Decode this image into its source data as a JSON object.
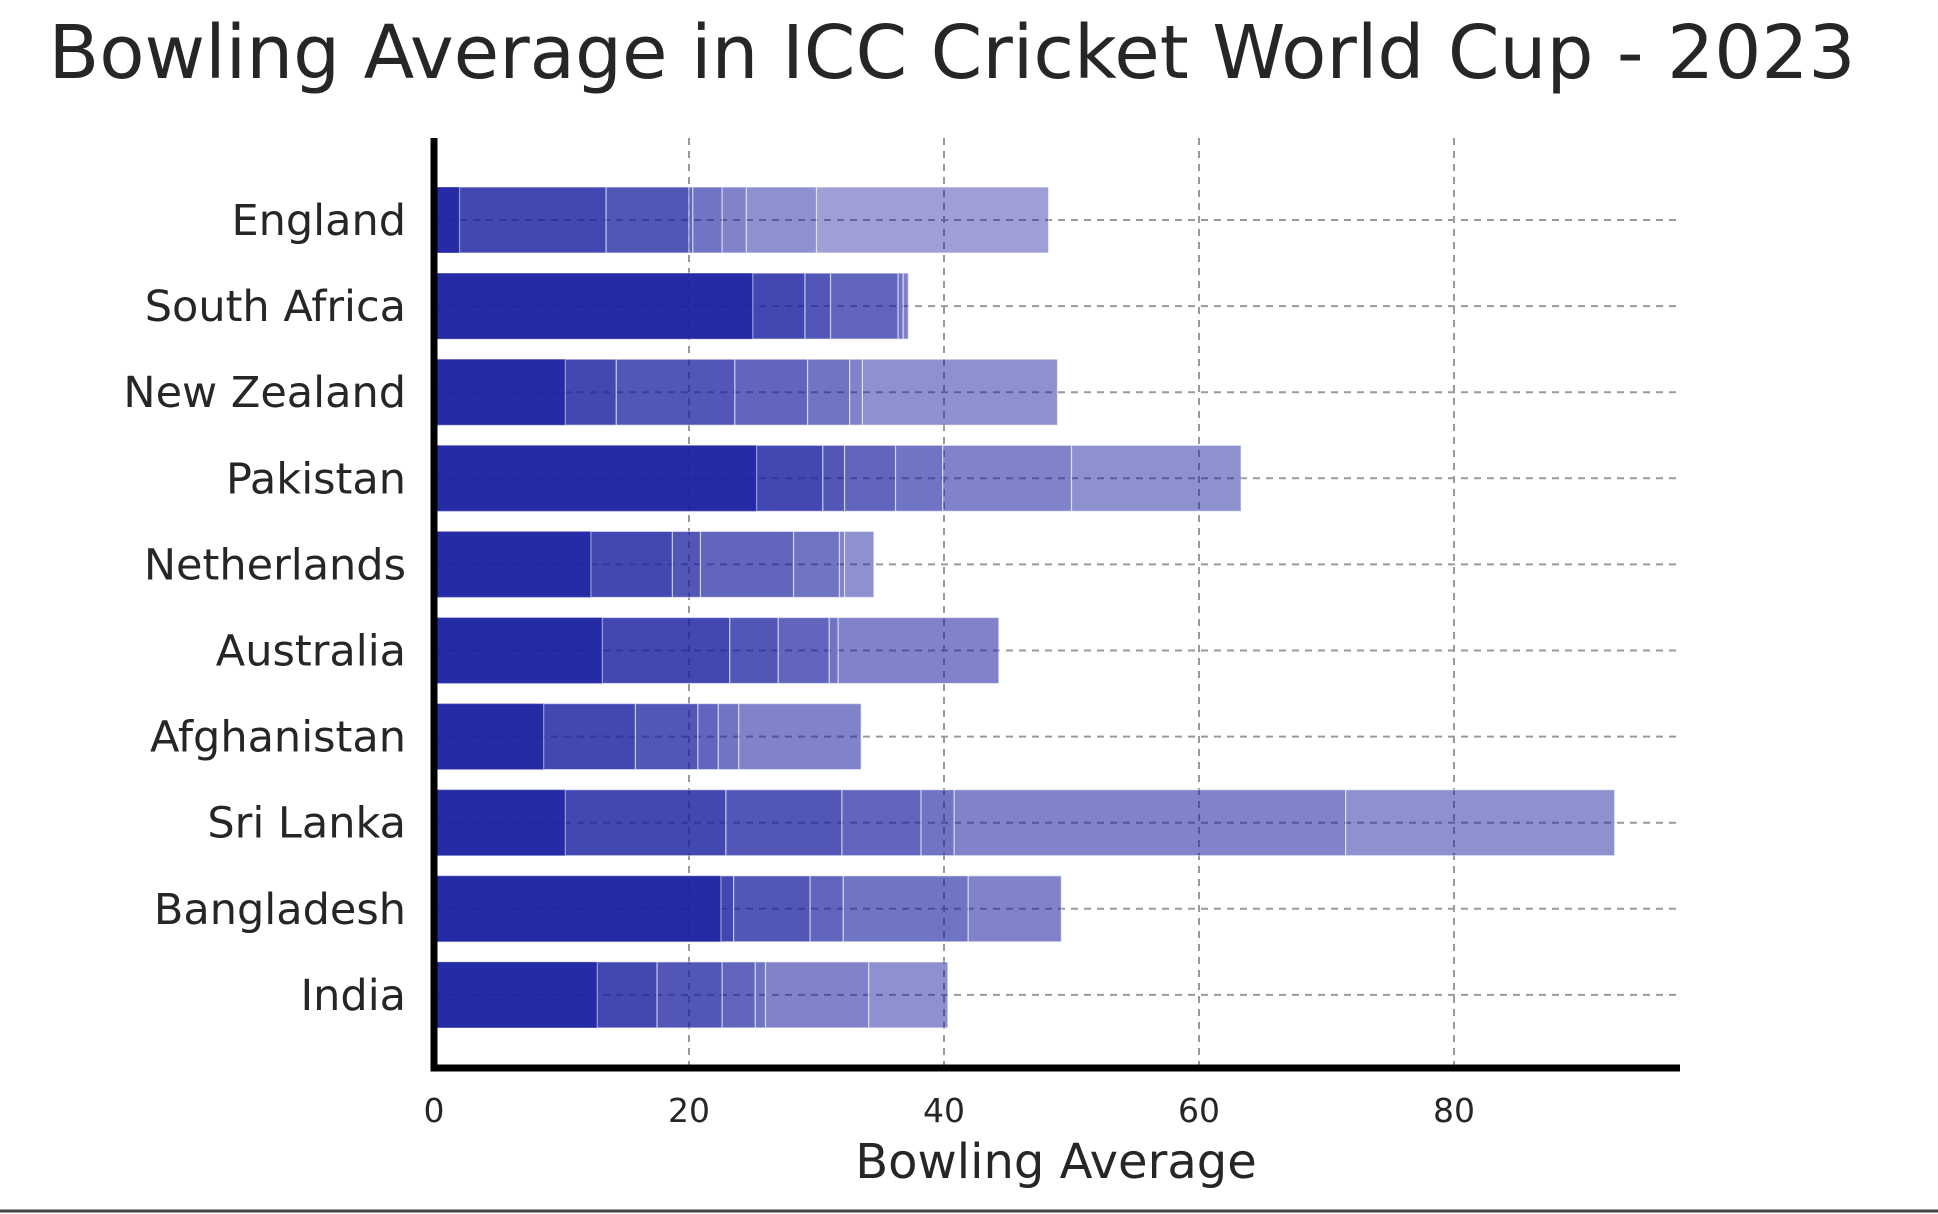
{
  "chart_data": {
    "type": "bar",
    "orientation": "horizontal",
    "stacked": true,
    "title": "Bowling Average in ICC Cricket World Cup - 2023",
    "xlabel": "Bowling Average",
    "ylabel": "",
    "xlim": [
      0,
      98
    ],
    "xticks": [
      0,
      20,
      40,
      60,
      80
    ],
    "grid": true,
    "bar_color": "#1a1fa0",
    "grid_color": "#9a9a9a",
    "categories": [
      "England",
      "South Africa",
      "New Zealand",
      "Pakistan",
      "Netherlands",
      "Australia",
      "Afghanistan",
      "Sri Lanka",
      "Bangladesh",
      "India"
    ],
    "bars": [
      {
        "category": "England",
        "segments": [
          2.0,
          11.5,
          6.5,
          0.3,
          2.3,
          1.9,
          5.5,
          18.2
        ],
        "total": 48.2
      },
      {
        "category": "South Africa",
        "segments": [
          25.0,
          4.1,
          2.0,
          5.3,
          0.4,
          0.4
        ],
        "total": 37.2
      },
      {
        "category": "New Zealand",
        "segments": [
          10.3,
          4.0,
          9.3,
          5.7,
          3.3,
          1.0,
          15.3
        ],
        "total": 48.9
      },
      {
        "category": "Pakistan",
        "segments": [
          25.3,
          5.2,
          1.7,
          4.0,
          3.7,
          10.1,
          13.3
        ],
        "total": 63.3
      },
      {
        "category": "Netherlands",
        "segments": [
          12.3,
          6.4,
          2.2,
          7.3,
          3.6,
          0.4,
          2.3
        ],
        "total": 34.5
      },
      {
        "category": "Australia",
        "segments": [
          13.2,
          10.0,
          3.8,
          4.0,
          0.7,
          12.6
        ],
        "total": 44.3
      },
      {
        "category": "Afghanistan",
        "segments": [
          8.6,
          7.2,
          4.9,
          1.6,
          1.6,
          9.6
        ],
        "total": 33.5
      },
      {
        "category": "Sri Lanka",
        "segments": [
          10.3,
          12.6,
          9.1,
          6.2,
          2.6,
          30.7,
          21.1
        ],
        "total": 92.6
      },
      {
        "category": "Bangladesh",
        "segments": [
          22.5,
          1.0,
          6.0,
          2.6,
          9.8,
          7.3
        ],
        "total": 49.2
      },
      {
        "category": "India",
        "segments": [
          12.8,
          4.7,
          5.1,
          2.6,
          0.8,
          8.1,
          6.2
        ],
        "total": 40.3
      }
    ]
  }
}
